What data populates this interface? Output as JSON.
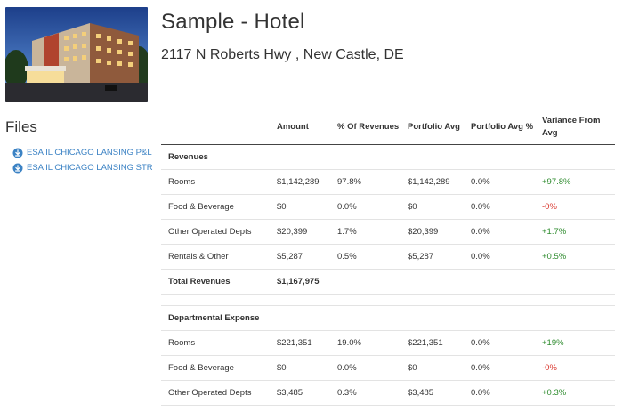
{
  "property": {
    "title": "Sample - Hotel",
    "address": "2117 N Roberts Hwy , New Castle, DE"
  },
  "files": {
    "heading": "Files",
    "items": [
      {
        "label": "ESA IL CHICAGO LANSING P&L",
        "icon": "download-icon"
      },
      {
        "label": "ESA IL CHICAGO LANSING STR",
        "icon": "download-icon"
      }
    ]
  },
  "table": {
    "headers": {
      "name": "",
      "amount": "Amount",
      "pct_rev": "% Of Revenues",
      "portfolio_avg": "Portfolio Avg",
      "portfolio_avg_pct": "Portfolio Avg %",
      "variance": "Variance From Avg"
    },
    "revenues": {
      "section": "Revenues",
      "rows": [
        {
          "name": "Rooms",
          "amount": "$1,142,289",
          "pct": "97.8%",
          "avg": "$1,142,289",
          "avg_pct": "0.0%",
          "variance": "+97.8%",
          "trend": "pos"
        },
        {
          "name": "Food & Beverage",
          "amount": "$0",
          "pct": "0.0%",
          "avg": "$0",
          "avg_pct": "0.0%",
          "variance": "-0%",
          "trend": "neg"
        },
        {
          "name": "Other Operated Depts",
          "amount": "$20,399",
          "pct": "1.7%",
          "avg": "$20,399",
          "avg_pct": "0.0%",
          "variance": "+1.7%",
          "trend": "pos"
        },
        {
          "name": "Rentals & Other",
          "amount": "$5,287",
          "pct": "0.5%",
          "avg": "$5,287",
          "avg_pct": "0.0%",
          "variance": "+0.5%",
          "trend": "pos"
        }
      ],
      "total_label": "Total Revenues",
      "total_amount": "$1,167,975"
    },
    "expense": {
      "section": "Departmental Expense",
      "rows": [
        {
          "name": "Rooms",
          "amount": "$221,351",
          "pct": "19.0%",
          "avg": "$221,351",
          "avg_pct": "0.0%",
          "variance": "+19%",
          "trend": "pos"
        },
        {
          "name": "Food & Beverage",
          "amount": "$0",
          "pct": "0.0%",
          "avg": "$0",
          "avg_pct": "0.0%",
          "variance": "-0%",
          "trend": "neg"
        },
        {
          "name": "Other Operated Depts",
          "amount": "$3,485",
          "pct": "0.3%",
          "avg": "$3,485",
          "avg_pct": "0.0%",
          "variance": "+0.3%",
          "trend": "pos"
        }
      ]
    }
  },
  "colors": {
    "positive": "#2e8b2e",
    "negative": "#d9342b",
    "link": "#3b82c4"
  }
}
